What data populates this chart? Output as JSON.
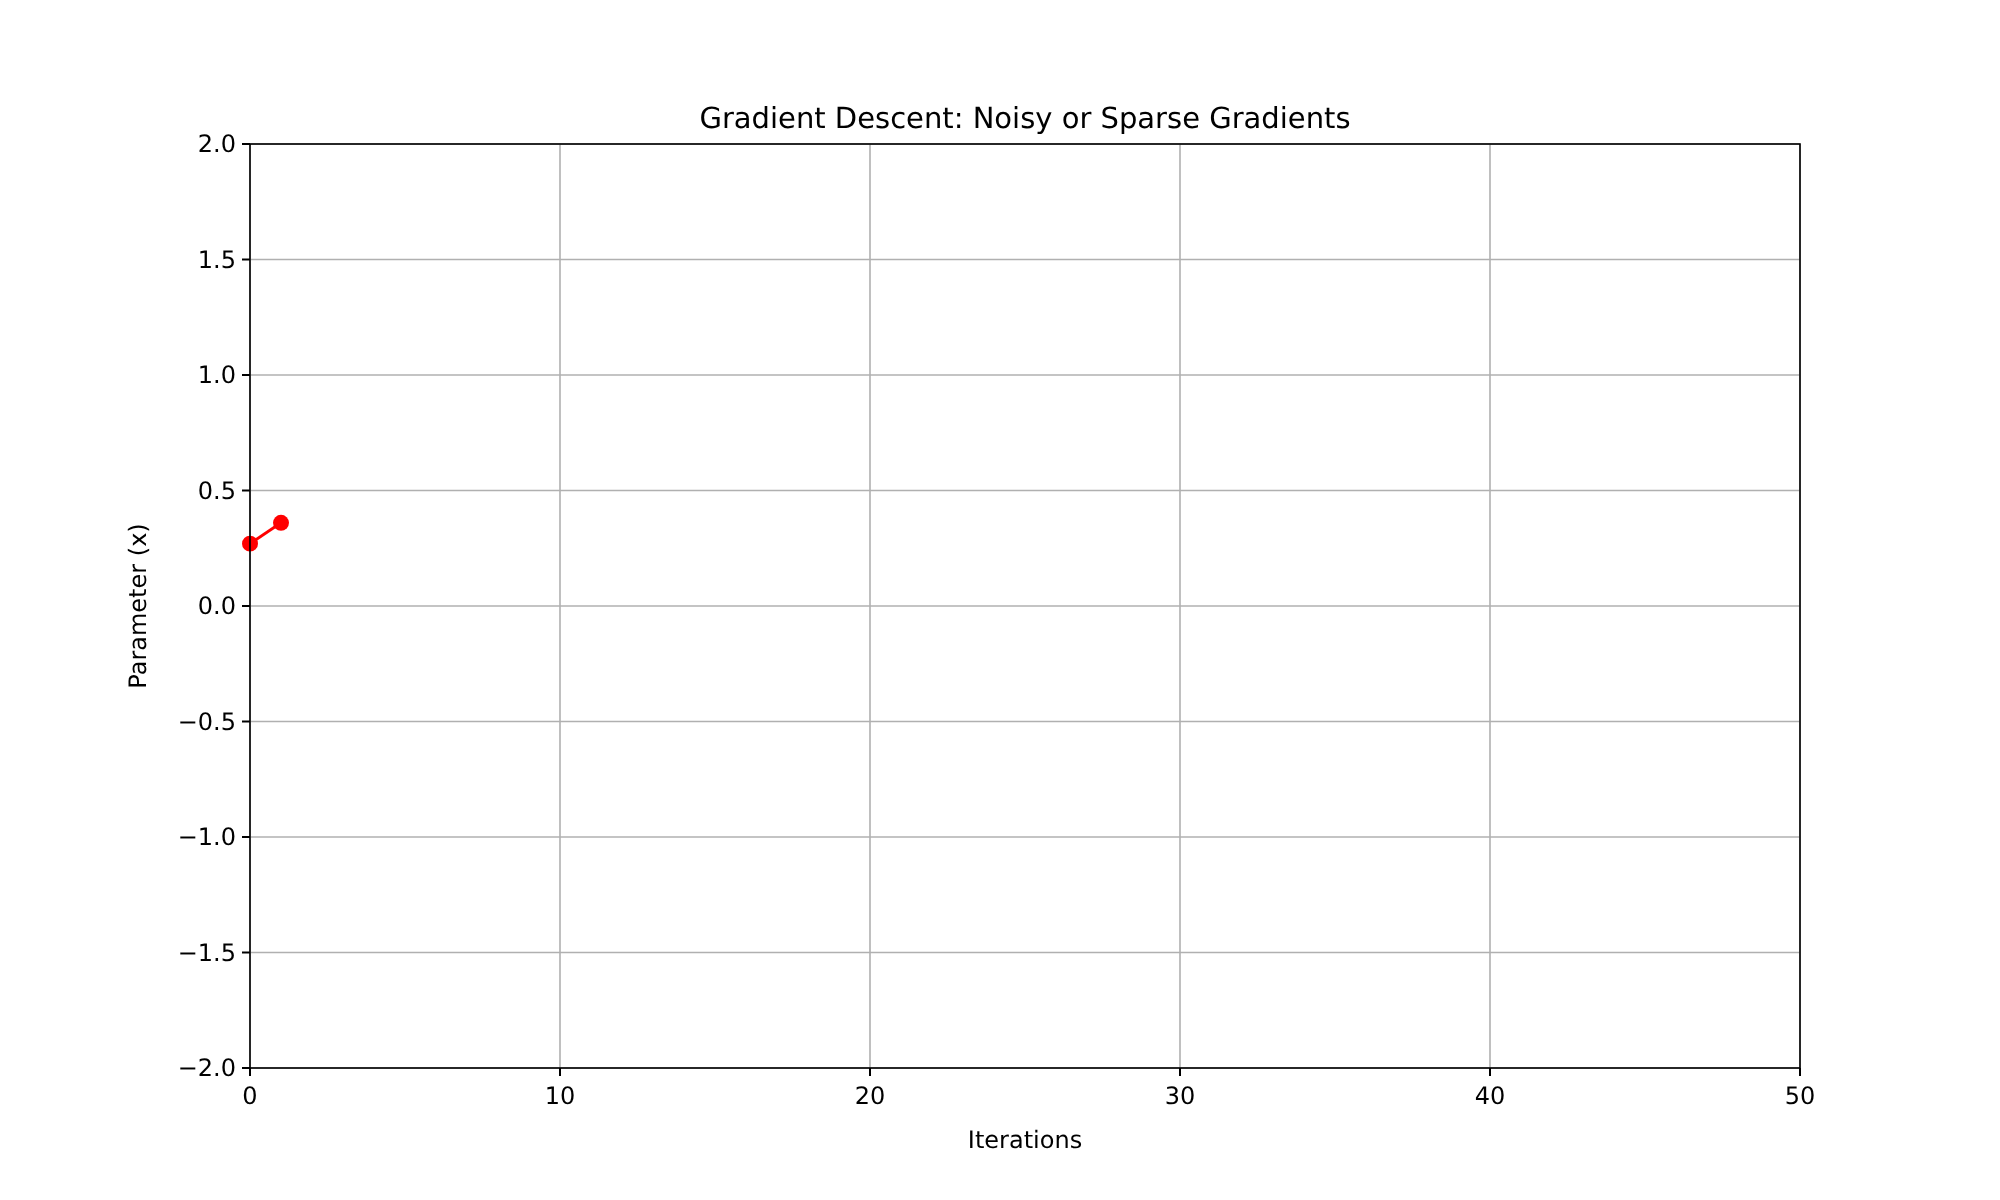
{
  "chart_data": {
    "type": "line",
    "title": "Gradient Descent: Noisy or Sparse Gradients",
    "xlabel": "Iterations",
    "ylabel": "Parameter (x)",
    "x": [
      0,
      1
    ],
    "series": [
      {
        "color": "#ff0000",
        "values": [
          0.27,
          0.36
        ]
      }
    ],
    "xlim": [
      0,
      50
    ],
    "xticks": [
      0,
      10,
      20,
      30,
      40,
      50
    ],
    "ylim": [
      -2,
      2
    ],
    "yticks": [
      {
        "value": -2,
        "label": "−2.0"
      },
      {
        "value": -1.5,
        "label": "−1.5"
      },
      {
        "value": -1,
        "label": "−1.0"
      },
      {
        "value": -0.5,
        "label": "−0.5"
      },
      {
        "value": 0,
        "label": "0.0"
      },
      {
        "value": 0.5,
        "label": "0.5"
      },
      {
        "value": 1,
        "label": "1.0"
      },
      {
        "value": 1.5,
        "label": "1.5"
      },
      {
        "value": 2,
        "label": "2.0"
      }
    ],
    "grid": true,
    "marker": "circle",
    "line_style": "solid"
  }
}
